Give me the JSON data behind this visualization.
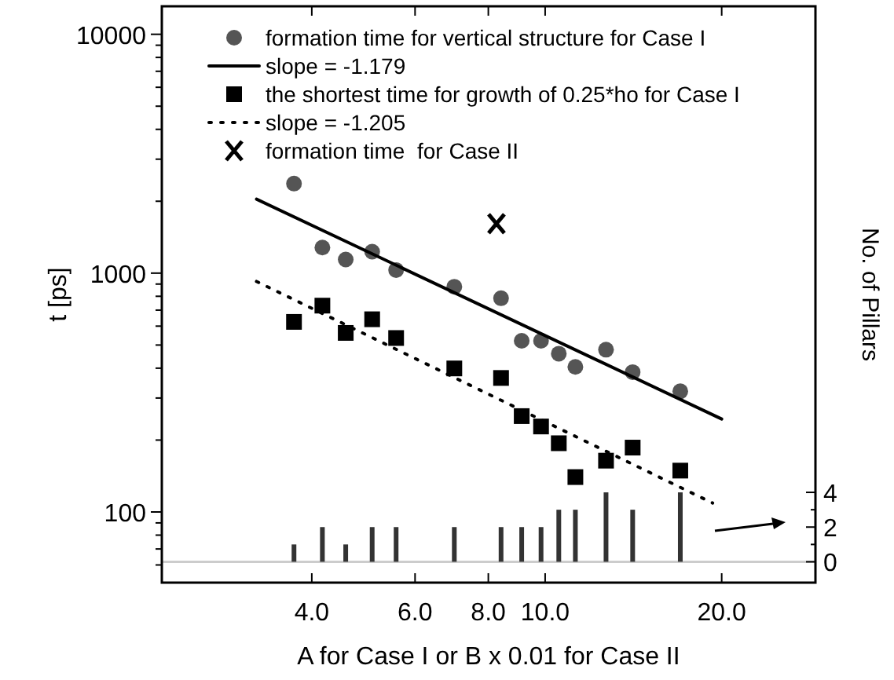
{
  "chart_data": {
    "type": "scatter",
    "xlabel": "A for Case I or B x 0.01 for Case II",
    "ylabel": "t [ps]",
    "y2label": "No. of Pillars",
    "log": "xy",
    "xlim": [
      2.22,
      28.9
    ],
    "ylim": [
      50.6,
      13100
    ],
    "y2lim": [
      -1.2,
      32
    ],
    "xticks": [
      {
        "value": 4,
        "label": "4.0"
      },
      {
        "value": 6,
        "label": "6.0"
      },
      {
        "value": 8,
        "label": "8.0"
      },
      {
        "value": 10,
        "label": "10.0"
      },
      {
        "value": 20,
        "label": "20.0"
      }
    ],
    "yticks": [
      {
        "value": 60,
        "label": null
      },
      {
        "value": 70,
        "label": null
      },
      {
        "value": 80,
        "label": null
      },
      {
        "value": 90,
        "label": null
      },
      100,
      {
        "value": 200,
        "label": null
      },
      {
        "value": 300,
        "label": null
      },
      {
        "value": 400,
        "label": null
      },
      {
        "value": 500,
        "label": null
      },
      {
        "value": 600,
        "label": null
      },
      {
        "value": 700,
        "label": null
      },
      {
        "value": 800,
        "label": null
      },
      {
        "value": 900,
        "label": null
      },
      1000,
      {
        "value": 2000,
        "label": null
      },
      {
        "value": 3000,
        "label": null
      },
      {
        "value": 4000,
        "label": null
      },
      {
        "value": 5000,
        "label": null
      },
      {
        "value": 6000,
        "label": null
      },
      {
        "value": 7000,
        "label": null
      },
      {
        "value": 8000,
        "label": null
      },
      {
        "value": 9000,
        "label": null
      },
      10000
    ],
    "y2ticks": [
      0,
      {
        "value": 1,
        "label": null
      },
      2,
      {
        "value": 3,
        "label": null
      },
      4
    ],
    "legend": "top left",
    "grid": false,
    "ref_lines": [
      {
        "axis": "y2",
        "value": 0,
        "color": "#cccccc"
      }
    ],
    "series": [
      {
        "name": "formation time for vertical structure for Case I",
        "marker": "circle",
        "color": "#555555",
        "x": [
          3.73,
          4.17,
          4.57,
          5.07,
          5.57,
          7.0,
          8.41,
          9.12,
          9.84,
          10.55,
          11.26,
          12.7,
          14.1,
          17.0
        ],
        "values": [
          2370,
          1280,
          1140,
          1230,
          1030,
          877,
          785,
          521,
          521,
          460,
          405,
          478,
          385,
          320
        ]
      },
      {
        "name": "slope = -1.179",
        "type": "line",
        "line_style": "solid",
        "color": "#000000",
        "x": [
          3.22,
          20.0
        ],
        "values": [
          2040,
          245
        ]
      },
      {
        "name": "the shortest time for growth of 0.25*ho for Case I",
        "marker": "square",
        "color": "#000000",
        "x": [
          3.73,
          4.17,
          4.57,
          5.07,
          5.57,
          7.0,
          8.41,
          9.12,
          9.84,
          10.55,
          11.26,
          12.7,
          14.1,
          17.0
        ],
        "values": [
          625,
          731,
          562,
          641,
          535,
          399,
          364,
          252,
          228,
          194,
          140,
          164,
          186,
          149
        ]
      },
      {
        "name": "slope = -1.205",
        "type": "line",
        "line_style": "dotted",
        "color": "#000000",
        "x": [
          3.22,
          19.3
        ],
        "values": [
          923,
          109
        ]
      },
      {
        "name": "formation time  for Case II",
        "marker": "cross",
        "color": "#000000",
        "x": [
          8.26
        ],
        "values": [
          1610
        ]
      },
      {
        "type": "bar",
        "axis": "y2",
        "color": "#333333",
        "x": [
          3.73,
          4.17,
          4.57,
          5.07,
          5.57,
          7.0,
          8.41,
          9.12,
          9.84,
          10.55,
          11.26,
          12.7,
          14.1,
          17.0
        ],
        "values": [
          1,
          2,
          1,
          2,
          2,
          2,
          2,
          2,
          2,
          3,
          3,
          4,
          3,
          4
        ]
      }
    ]
  }
}
